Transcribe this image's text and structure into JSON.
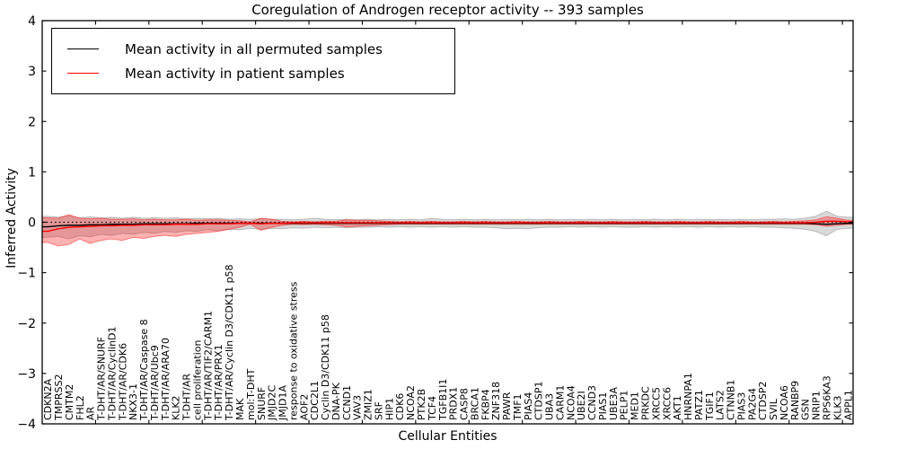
{
  "chart_data": {
    "type": "line",
    "title": "Coregulation of Androgen receptor activity -- 393 samples",
    "xlabel": "Cellular Entities",
    "ylabel": "Inferred Activity",
    "ylim": [
      -4,
      4
    ],
    "ytick_values": [
      4,
      3,
      2,
      1,
      0,
      -1,
      -2,
      -3,
      -4
    ],
    "ytick_labels": [
      "4",
      "3",
      "2",
      "1",
      "0",
      "−1",
      "−2",
      "−3",
      "−4"
    ],
    "xtick_unit_step": 5,
    "grid": false,
    "legend_position": "upper left",
    "zero_line": {
      "y": 0,
      "color": "#000000",
      "style": "dotted"
    },
    "legend": {
      "entries": [
        {
          "label": "Mean activity in all permuted samples",
          "color": "#000000"
        },
        {
          "label": "Mean activity in patient samples",
          "color": "#ff0000"
        }
      ]
    },
    "categories": [
      "CDKN2A",
      "TMPRSS2",
      "CMTM2",
      "FHL2",
      "AR",
      "T-DHT/AR/SNURF",
      "T-DHT/AR/CyclinD1",
      "T-DHT/AR/CDK6",
      "NKX3-1",
      "T-DHT/AR/Caspase 8",
      "T-DHT/AR/Ubc9",
      "T-DHT/AR/ARA70",
      "KLK2",
      "T-DHT/AR",
      "cell proliferation",
      "T-DHT/AR/TIF2/CARM1",
      "T-DHT/AR/PRX1",
      "T-DHT/AR/Cyclin D3/CDK11 p58",
      "MAK",
      "mol:T-DHT",
      "SNURF",
      "JMJD2C",
      "JMJD1A",
      "response to oxidative stress",
      "AOF2",
      "CDC2L1",
      "Cyclin D3/CDK11 p58",
      "DNA-PK",
      "CCND1",
      "VAV3",
      "ZMIZ1",
      "SRF",
      "HIP1",
      "CDK6",
      "NCOA2",
      "PTK2B",
      "TCF4",
      "TGFB1I1",
      "PRDX1",
      "CASP8",
      "BRCA1",
      "FKBP4",
      "ZNF318",
      "PAWR",
      "TMF1",
      "PIAS4",
      "CTDSP1",
      "UBA3",
      "CARM1",
      "NCOA4",
      "UBE2I",
      "CCND3",
      "PIAS1",
      "UBE3A",
      "PELP1",
      "MED1",
      "PRKDC",
      "XRCC5",
      "XRCC6",
      "AKT1",
      "HNRNPA1",
      "PATZ1",
      "TGIF1",
      "LATS2",
      "CTNNB1",
      "PIAS3",
      "PA2G4",
      "CTDSP2",
      "SVIL",
      "NCOA6",
      "RANBP9",
      "GSN",
      "NRIP1",
      "RPS6KA3",
      "KLK3",
      "APPL1"
    ],
    "series": [
      {
        "name": "Mean activity in all permuted samples",
        "color": "#000000",
        "band_color": "#808080",
        "band_opacity": 0.3,
        "values": [
          -0.09,
          -0.07,
          -0.06,
          -0.06,
          -0.05,
          -0.05,
          -0.04,
          -0.04,
          -0.04,
          -0.03,
          -0.03,
          -0.03,
          -0.03,
          -0.03,
          -0.02,
          -0.02,
          -0.02,
          -0.02,
          -0.02,
          -0.02,
          -0.02,
          -0.02,
          -0.02,
          -0.02,
          -0.02,
          -0.02,
          -0.02,
          -0.02,
          -0.02,
          -0.02,
          -0.02,
          -0.02,
          -0.02,
          -0.02,
          -0.02,
          -0.02,
          -0.02,
          -0.02,
          -0.02,
          -0.02,
          -0.02,
          -0.02,
          -0.02,
          -0.02,
          -0.02,
          -0.02,
          -0.02,
          -0.02,
          -0.02,
          -0.02,
          -0.02,
          -0.02,
          -0.02,
          -0.02,
          -0.02,
          -0.02,
          -0.02,
          -0.02,
          -0.02,
          -0.02,
          -0.02,
          -0.02,
          -0.02,
          -0.02,
          -0.02,
          -0.02,
          -0.02,
          -0.02,
          -0.02,
          -0.02,
          -0.02,
          -0.02,
          -0.03,
          -0.04,
          -0.03,
          -0.02
        ],
        "band_upper": [
          0.12,
          0.1,
          0.13,
          0.09,
          0.11,
          0.09,
          0.1,
          0.08,
          0.1,
          0.08,
          0.09,
          0.08,
          0.09,
          0.07,
          0.08,
          0.07,
          0.08,
          0.06,
          0.07,
          0.06,
          0.07,
          0.06,
          0.06,
          0.05,
          0.06,
          0.08,
          0.06,
          0.05,
          0.06,
          0.05,
          0.06,
          0.05,
          0.06,
          0.05,
          0.06,
          0.05,
          0.08,
          0.06,
          0.05,
          0.06,
          0.05,
          0.06,
          0.05,
          0.06,
          0.05,
          0.06,
          0.05,
          0.06,
          0.05,
          0.06,
          0.05,
          0.06,
          0.05,
          0.06,
          0.05,
          0.06,
          0.05,
          0.06,
          0.05,
          0.06,
          0.05,
          0.06,
          0.05,
          0.06,
          0.05,
          0.06,
          0.05,
          0.06,
          0.06,
          0.07,
          0.06,
          0.08,
          0.12,
          0.22,
          0.12,
          0.1
        ],
        "band_lower": [
          -0.3,
          -0.28,
          -0.33,
          -0.27,
          -0.29,
          -0.24,
          -0.26,
          -0.22,
          -0.24,
          -0.2,
          -0.22,
          -0.18,
          -0.2,
          -0.17,
          -0.18,
          -0.15,
          -0.17,
          -0.14,
          -0.15,
          -0.12,
          -0.14,
          -0.12,
          -0.13,
          -0.11,
          -0.12,
          -0.1,
          -0.11,
          -0.1,
          -0.11,
          -0.1,
          -0.1,
          -0.09,
          -0.1,
          -0.09,
          -0.1,
          -0.09,
          -0.1,
          -0.09,
          -0.1,
          -0.09,
          -0.1,
          -0.1,
          -0.11,
          -0.13,
          -0.12,
          -0.13,
          -0.11,
          -0.1,
          -0.1,
          -0.09,
          -0.1,
          -0.09,
          -0.1,
          -0.09,
          -0.1,
          -0.1,
          -0.09,
          -0.1,
          -0.09,
          -0.1,
          -0.09,
          -0.1,
          -0.09,
          -0.1,
          -0.09,
          -0.1,
          -0.09,
          -0.1,
          -0.1,
          -0.11,
          -0.12,
          -0.14,
          -0.18,
          -0.27,
          -0.14,
          -0.12
        ]
      },
      {
        "name": "Mean activity in patient samples",
        "color": "#ff0000",
        "band_color": "#ff0000",
        "band_opacity": 0.3,
        "values": [
          -0.18,
          -0.13,
          -0.1,
          -0.09,
          -0.08,
          -0.07,
          -0.07,
          -0.06,
          -0.06,
          -0.05,
          -0.05,
          -0.05,
          -0.04,
          -0.04,
          -0.04,
          -0.03,
          -0.03,
          -0.03,
          -0.02,
          -0.02,
          -0.03,
          -0.02,
          -0.02,
          -0.01,
          -0.01,
          -0.01,
          -0.01,
          -0.01,
          -0.01,
          -0.01,
          -0.01,
          -0.01,
          -0.01,
          -0.01,
          -0.01,
          -0.01,
          -0.01,
          -0.01,
          -0.01,
          -0.01,
          -0.01,
          -0.01,
          -0.01,
          -0.01,
          -0.01,
          -0.01,
          -0.01,
          -0.01,
          -0.01,
          -0.01,
          -0.01,
          -0.01,
          -0.01,
          -0.01,
          -0.01,
          -0.01,
          -0.01,
          -0.01,
          -0.01,
          -0.01,
          -0.01,
          -0.01,
          -0.01,
          -0.01,
          -0.01,
          -0.01,
          -0.01,
          -0.01,
          -0.01,
          -0.01,
          -0.01,
          -0.01,
          0.0,
          0.02,
          0.02,
          0.01
        ],
        "band_upper": [
          0.09,
          0.08,
          0.15,
          0.08,
          0.07,
          0.08,
          0.06,
          0.06,
          0.07,
          0.05,
          0.06,
          0.05,
          0.05,
          0.06,
          0.04,
          0.05,
          0.05,
          0.04,
          0.03,
          0.01,
          0.08,
          0.06,
          0.02,
          0.01,
          0.02,
          0.01,
          0.02,
          0.02,
          0.05,
          0.04,
          0.04,
          0.03,
          0.02,
          0.01,
          0.02,
          0.01,
          0.02,
          0.01,
          0.01,
          0.02,
          0.01,
          0.02,
          0.01,
          0.01,
          0.02,
          0.01,
          0.01,
          0.02,
          0.01,
          0.01,
          0.02,
          0.01,
          0.01,
          0.02,
          0.01,
          0.01,
          0.02,
          0.01,
          0.01,
          0.02,
          0.01,
          0.01,
          0.02,
          0.01,
          0.01,
          0.02,
          0.01,
          0.01,
          0.02,
          0.01,
          0.02,
          0.03,
          0.05,
          0.11,
          0.08,
          0.04
        ],
        "band_lower": [
          -0.4,
          -0.47,
          -0.44,
          -0.33,
          -0.42,
          -0.36,
          -0.33,
          -0.36,
          -0.3,
          -0.32,
          -0.28,
          -0.26,
          -0.28,
          -0.24,
          -0.22,
          -0.2,
          -0.18,
          -0.14,
          -0.1,
          -0.04,
          -0.16,
          -0.1,
          -0.06,
          -0.04,
          -0.05,
          -0.04,
          -0.05,
          -0.06,
          -0.09,
          -0.08,
          -0.07,
          -0.06,
          -0.05,
          -0.04,
          -0.04,
          -0.04,
          -0.04,
          -0.04,
          -0.04,
          -0.04,
          -0.04,
          -0.04,
          -0.04,
          -0.04,
          -0.04,
          -0.04,
          -0.04,
          -0.04,
          -0.04,
          -0.04,
          -0.04,
          -0.04,
          -0.04,
          -0.04,
          -0.04,
          -0.04,
          -0.04,
          -0.04,
          -0.04,
          -0.04,
          -0.04,
          -0.04,
          -0.04,
          -0.04,
          -0.04,
          -0.04,
          -0.04,
          -0.04,
          -0.04,
          -0.04,
          -0.04,
          -0.04,
          -0.05,
          -0.08,
          -0.06,
          -0.04
        ]
      }
    ]
  }
}
